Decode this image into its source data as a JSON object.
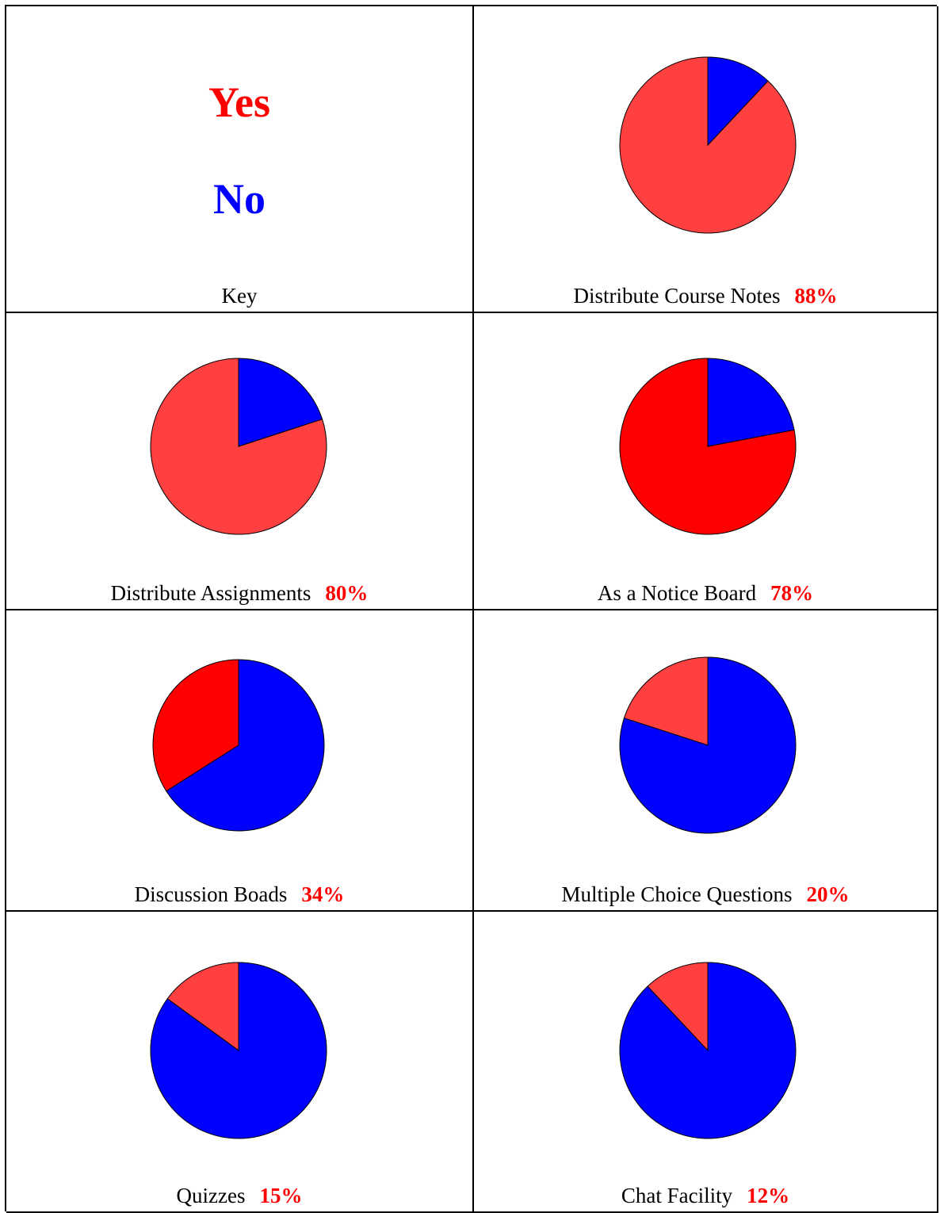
{
  "key": {
    "yes_label": "Yes",
    "no_label": "No",
    "caption": "Key"
  },
  "colors": {
    "yes": "#ff4040",
    "yes_deep": "#ff0000",
    "no": "#0000ff"
  },
  "chart_data": [
    {
      "type": "pie",
      "title": "Distribute Course Notes",
      "label": "88%",
      "categories": [
        "Yes",
        "No"
      ],
      "values": [
        88,
        12
      ]
    },
    {
      "type": "pie",
      "title": "Distribute Assignments",
      "label": "80%",
      "categories": [
        "Yes",
        "No"
      ],
      "values": [
        80,
        20
      ]
    },
    {
      "type": "pie",
      "title": "As a Notice Board",
      "label": "78%",
      "categories": [
        "Yes",
        "No"
      ],
      "values": [
        78,
        22
      ]
    },
    {
      "type": "pie",
      "title": "Discussion Boads",
      "label": "34%",
      "categories": [
        "Yes",
        "No"
      ],
      "values": [
        34,
        66
      ]
    },
    {
      "type": "pie",
      "title": "Multiple Choice Questions",
      "label": "20%",
      "categories": [
        "Yes",
        "No"
      ],
      "values": [
        20,
        80
      ]
    },
    {
      "type": "pie",
      "title": "Quizzes",
      "label": "15%",
      "categories": [
        "Yes",
        "No"
      ],
      "values": [
        15,
        85
      ]
    },
    {
      "type": "pie",
      "title": "Chat Facility",
      "label": "12%",
      "categories": [
        "Yes",
        "No"
      ],
      "values": [
        12,
        88
      ]
    }
  ]
}
